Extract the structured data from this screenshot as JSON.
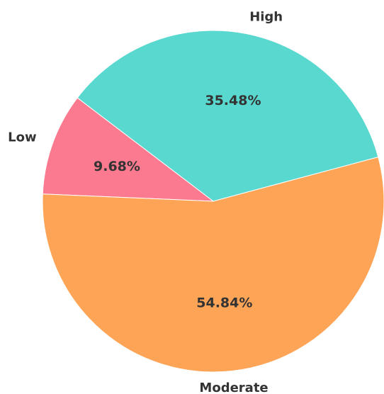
{
  "chart_data": {
    "type": "pie",
    "slices": [
      {
        "label": "High",
        "value": 35.48,
        "value_label": "35.48%",
        "color": "#58d8ce"
      },
      {
        "label": "Low",
        "value": 9.68,
        "value_label": "9.68%",
        "color": "#fc7a8f"
      },
      {
        "label": "Moderate",
        "value": 54.84,
        "value_label": "54.84%",
        "color": "#fea457"
      }
    ],
    "start_angle_deg": 15,
    "direction": "counterclockwise"
  }
}
